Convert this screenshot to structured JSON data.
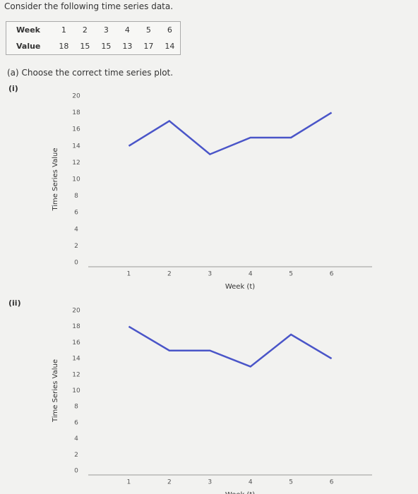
{
  "header": {
    "title": "Consider the following time series data."
  },
  "table": {
    "rows": [
      [
        "Week",
        1,
        2,
        3,
        4,
        5,
        6
      ],
      [
        "Value",
        18,
        15,
        15,
        13,
        17,
        14
      ]
    ]
  },
  "question": "(a) Choose the correct time series plot.",
  "chart_data": [
    {
      "type": "line",
      "label": "(i)",
      "xlabel": "Week (t)",
      "ylabel": "Time Series Value",
      "x": [
        1,
        2,
        3,
        4,
        5,
        6
      ],
      "series": [
        {
          "color": "#4a55c8",
          "values": [
            14,
            17,
            13,
            15,
            15,
            18
          ]
        }
      ],
      "xlim": [
        0,
        7
      ],
      "ylim": [
        0,
        20
      ],
      "xticks": [
        1,
        2,
        3,
        4,
        5,
        6
      ],
      "yticks": [
        0,
        2,
        4,
        6,
        8,
        10,
        12,
        14,
        16,
        18,
        20
      ]
    },
    {
      "type": "line",
      "label": "(ii)",
      "xlabel": "Week (t)",
      "ylabel": "Time Series Value",
      "x": [
        1,
        2,
        3,
        4,
        5,
        6
      ],
      "series": [
        {
          "color": "#4a55c8",
          "values": [
            18,
            15,
            15,
            13,
            17,
            14
          ]
        }
      ],
      "xlim": [
        0,
        7
      ],
      "ylim": [
        0,
        20
      ],
      "xticks": [
        1,
        2,
        3,
        4,
        5,
        6
      ],
      "yticks": [
        0,
        2,
        4,
        6,
        8,
        10,
        12,
        14,
        16,
        18,
        20
      ]
    }
  ]
}
